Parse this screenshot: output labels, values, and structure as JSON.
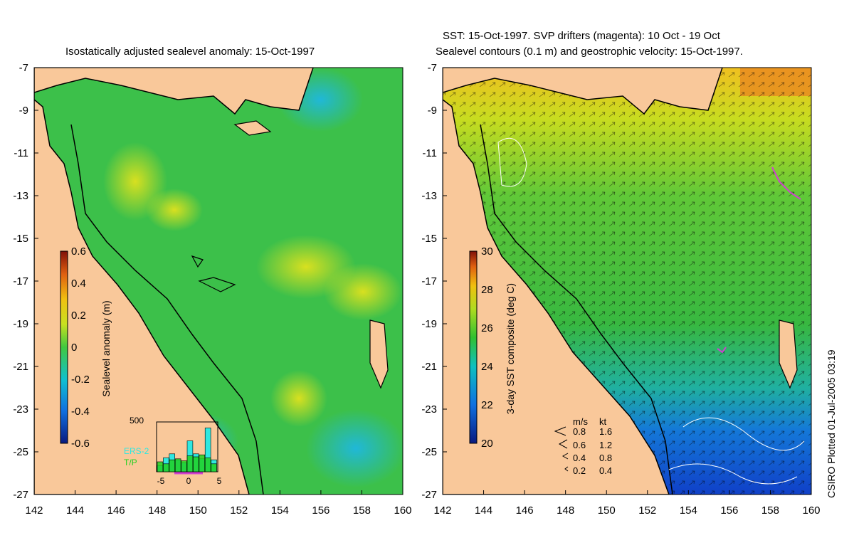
{
  "left_panel": {
    "title": "Isostatically adjusted sealevel anomaly: 15-Oct-1997",
    "colorbar": {
      "label": "Sealevel anomaly (m)",
      "ticks": [
        "0.6",
        "0.4",
        "0.2",
        "0",
        "-0.2",
        "-0.4",
        "-0.6"
      ]
    },
    "histogram": {
      "ymax_label": "500",
      "legend": [
        "ERS-2",
        "T/P"
      ],
      "legend_colors": [
        "#30e8e0",
        "#20d020"
      ],
      "xticks": [
        "-5",
        "0",
        "5"
      ],
      "ers2_counts": [
        60,
        140,
        180,
        120,
        90,
        310,
        180,
        130,
        440,
        120
      ],
      "tp_counts": [
        100,
        80,
        120,
        130,
        110,
        160,
        150,
        170,
        140,
        80
      ]
    },
    "yticks": [
      "-7",
      "-9",
      "-11",
      "-13",
      "-15",
      "-17",
      "-19",
      "-21",
      "-23",
      "-25",
      "-27"
    ],
    "xticks": [
      "142",
      "144",
      "146",
      "148",
      "150",
      "152",
      "154",
      "156",
      "158",
      "160"
    ]
  },
  "right_panel": {
    "title_line1": "SST: 15-Oct-1997. SVP drifters (magenta): 10 Oct - 19 Oct",
    "title_line2": "Sealevel contours (0.1 m) and geostrophic velocity: 15-Oct-1997.",
    "colorbar": {
      "label": "3-day SST composite (deg C)",
      "ticks": [
        "30",
        "28",
        "26",
        "24",
        "22",
        "20"
      ]
    },
    "velocity_legend": {
      "header_ms": "m/s",
      "header_kt": "kt",
      "rows": [
        {
          "ms": "0.8",
          "kt": "1.6"
        },
        {
          "ms": "0.6",
          "kt": "1.2"
        },
        {
          "ms": "0.4",
          "kt": "0.8"
        },
        {
          "ms": "0.2",
          "kt": "0.4"
        }
      ]
    },
    "yticks": [
      "-7",
      "-9",
      "-11",
      "-13",
      "-15",
      "-17",
      "-19",
      "-21",
      "-23",
      "-25",
      "-27"
    ],
    "xticks": [
      "142",
      "144",
      "146",
      "148",
      "150",
      "152",
      "154",
      "156",
      "158",
      "160"
    ]
  },
  "credit": "CSIRO Plotted 01-Jul-2005 03:19",
  "colors": {
    "land": "#f9c89a",
    "sla_background": "#3cc04a",
    "sst_warm": "#f0a020",
    "sst_cool": "#1850d0",
    "drifter": "#d040d0"
  }
}
